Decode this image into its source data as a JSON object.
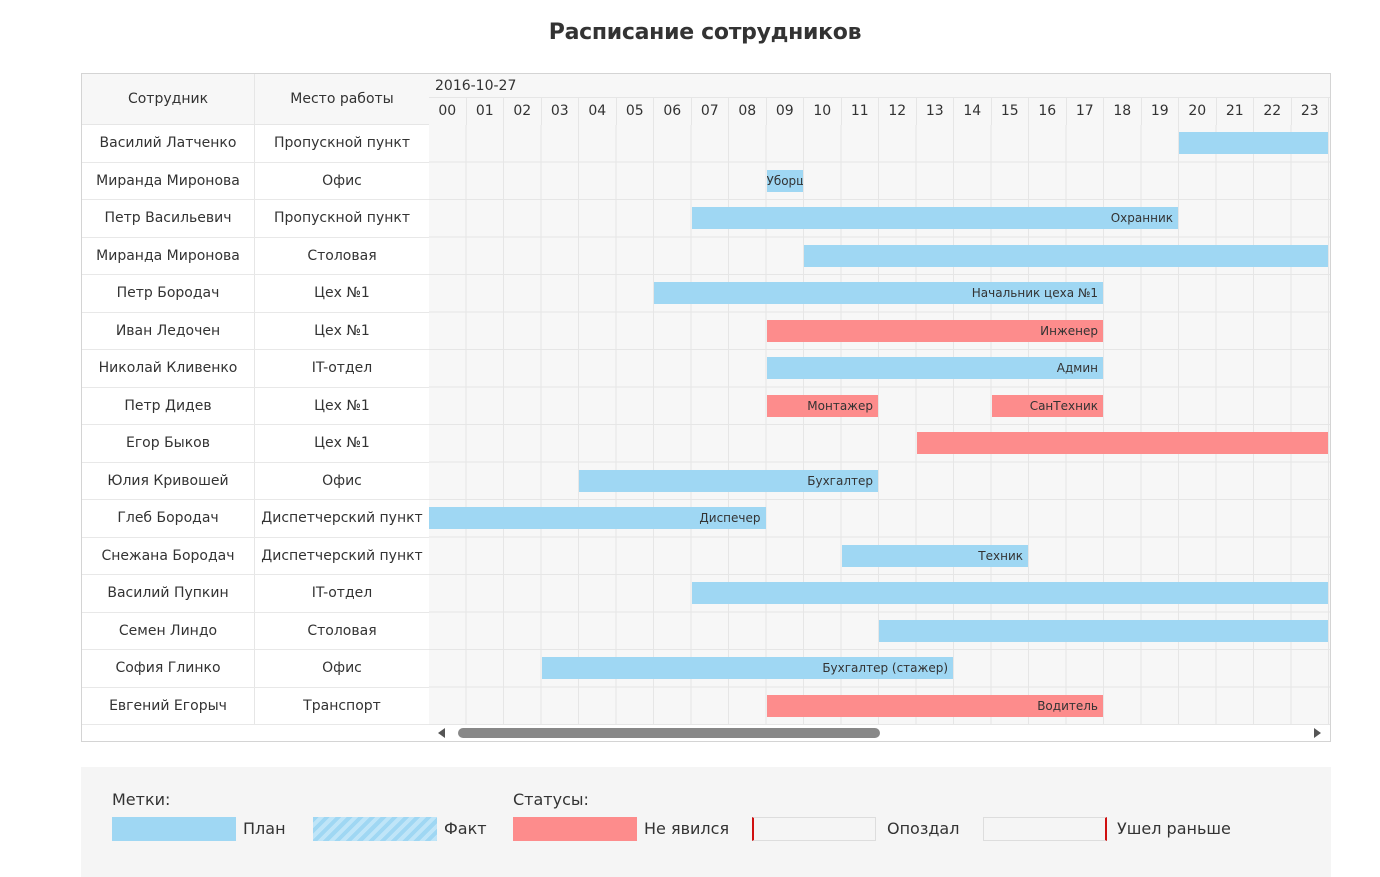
{
  "title": "Расписание сотрудников",
  "grid": {
    "columns": {
      "employee": "Сотрудник",
      "place": "Место работы"
    },
    "date": "2016-10-27",
    "hours": [
      "00",
      "01",
      "02",
      "03",
      "04",
      "05",
      "06",
      "07",
      "08",
      "09",
      "10",
      "11",
      "12",
      "13",
      "14",
      "15",
      "16",
      "17",
      "18",
      "19",
      "20",
      "21",
      "22",
      "23"
    ],
    "rows": [
      {
        "employee": "Василий Латченко",
        "place": "Пропускной пункт",
        "bars": [
          {
            "start": 20,
            "end": 24,
            "label": "",
            "status": "plan"
          }
        ]
      },
      {
        "employee": "Миранда Миронова",
        "place": "Офис",
        "bars": [
          {
            "start": 9,
            "end": 10,
            "label": "Уборщ",
            "status": "plan"
          }
        ]
      },
      {
        "employee": "Петр Васильевич",
        "place": "Пропускной пункт",
        "bars": [
          {
            "start": 7,
            "end": 20,
            "label": "Охранник",
            "status": "plan"
          }
        ]
      },
      {
        "employee": "Миранда Миронова",
        "place": "Столовая",
        "bars": [
          {
            "start": 10,
            "end": 24,
            "label": "",
            "status": "plan"
          }
        ]
      },
      {
        "employee": "Петр Бородач",
        "place": "Цех №1",
        "bars": [
          {
            "start": 6,
            "end": 18,
            "label": "Начальник цеха №1",
            "status": "plan"
          }
        ]
      },
      {
        "employee": "Иван Ледочен",
        "place": "Цех №1",
        "bars": [
          {
            "start": 9,
            "end": 18,
            "label": "Инженер",
            "status": "absent"
          }
        ]
      },
      {
        "employee": "Николай Кливенко",
        "place": "IT-отдел",
        "bars": [
          {
            "start": 9,
            "end": 18,
            "label": "Админ",
            "status": "plan"
          }
        ]
      },
      {
        "employee": "Петр Дидев",
        "place": "Цех №1",
        "bars": [
          {
            "start": 9,
            "end": 12,
            "label": "Монтажер",
            "status": "absent"
          },
          {
            "start": 15,
            "end": 18,
            "label": "СанТехник",
            "status": "absent"
          }
        ]
      },
      {
        "employee": "Егор Быков",
        "place": "Цех №1",
        "bars": [
          {
            "start": 13,
            "end": 24,
            "label": "",
            "status": "absent"
          }
        ]
      },
      {
        "employee": "Юлия Кривошей",
        "place": "Офис",
        "bars": [
          {
            "start": 4,
            "end": 12,
            "label": "Бухгалтер",
            "status": "plan"
          }
        ]
      },
      {
        "employee": "Глеб Бородач",
        "place": "Диспетчерский пункт",
        "bars": [
          {
            "start": 0,
            "end": 9,
            "label": "Диспечер",
            "status": "plan"
          }
        ]
      },
      {
        "employee": "Снежана Бородач",
        "place": "Диспетчерский пункт",
        "bars": [
          {
            "start": 11,
            "end": 16,
            "label": "Техник",
            "status": "plan"
          }
        ]
      },
      {
        "employee": "Василий Пупкин",
        "place": "IT-отдел",
        "bars": [
          {
            "start": 7,
            "end": 24,
            "label": "",
            "status": "plan"
          }
        ]
      },
      {
        "employee": "Семен Линдо",
        "place": "Столовая",
        "bars": [
          {
            "start": 12,
            "end": 24,
            "label": "",
            "status": "plan"
          }
        ]
      },
      {
        "employee": "София Глинко",
        "place": "Офис",
        "bars": [
          {
            "start": 3,
            "end": 14,
            "label": "Бухгалтер (стажер)",
            "status": "plan"
          }
        ]
      },
      {
        "employee": "Евгений Егорыч",
        "place": "Транспорт",
        "bars": [
          {
            "start": 9,
            "end": 18,
            "label": "Водитель",
            "status": "absent"
          }
        ]
      }
    ]
  },
  "legend": {
    "marks_title": "Метки:",
    "plan": "План",
    "fact": "Факт",
    "statuses_title": "Статусы:",
    "absent": "Не явился",
    "late": "Опоздал",
    "left_early": "Ушел раньше"
  },
  "colors": {
    "plan": "#9fd7f3",
    "absent": "#fd8c8c",
    "status_marker": "#d01010"
  }
}
